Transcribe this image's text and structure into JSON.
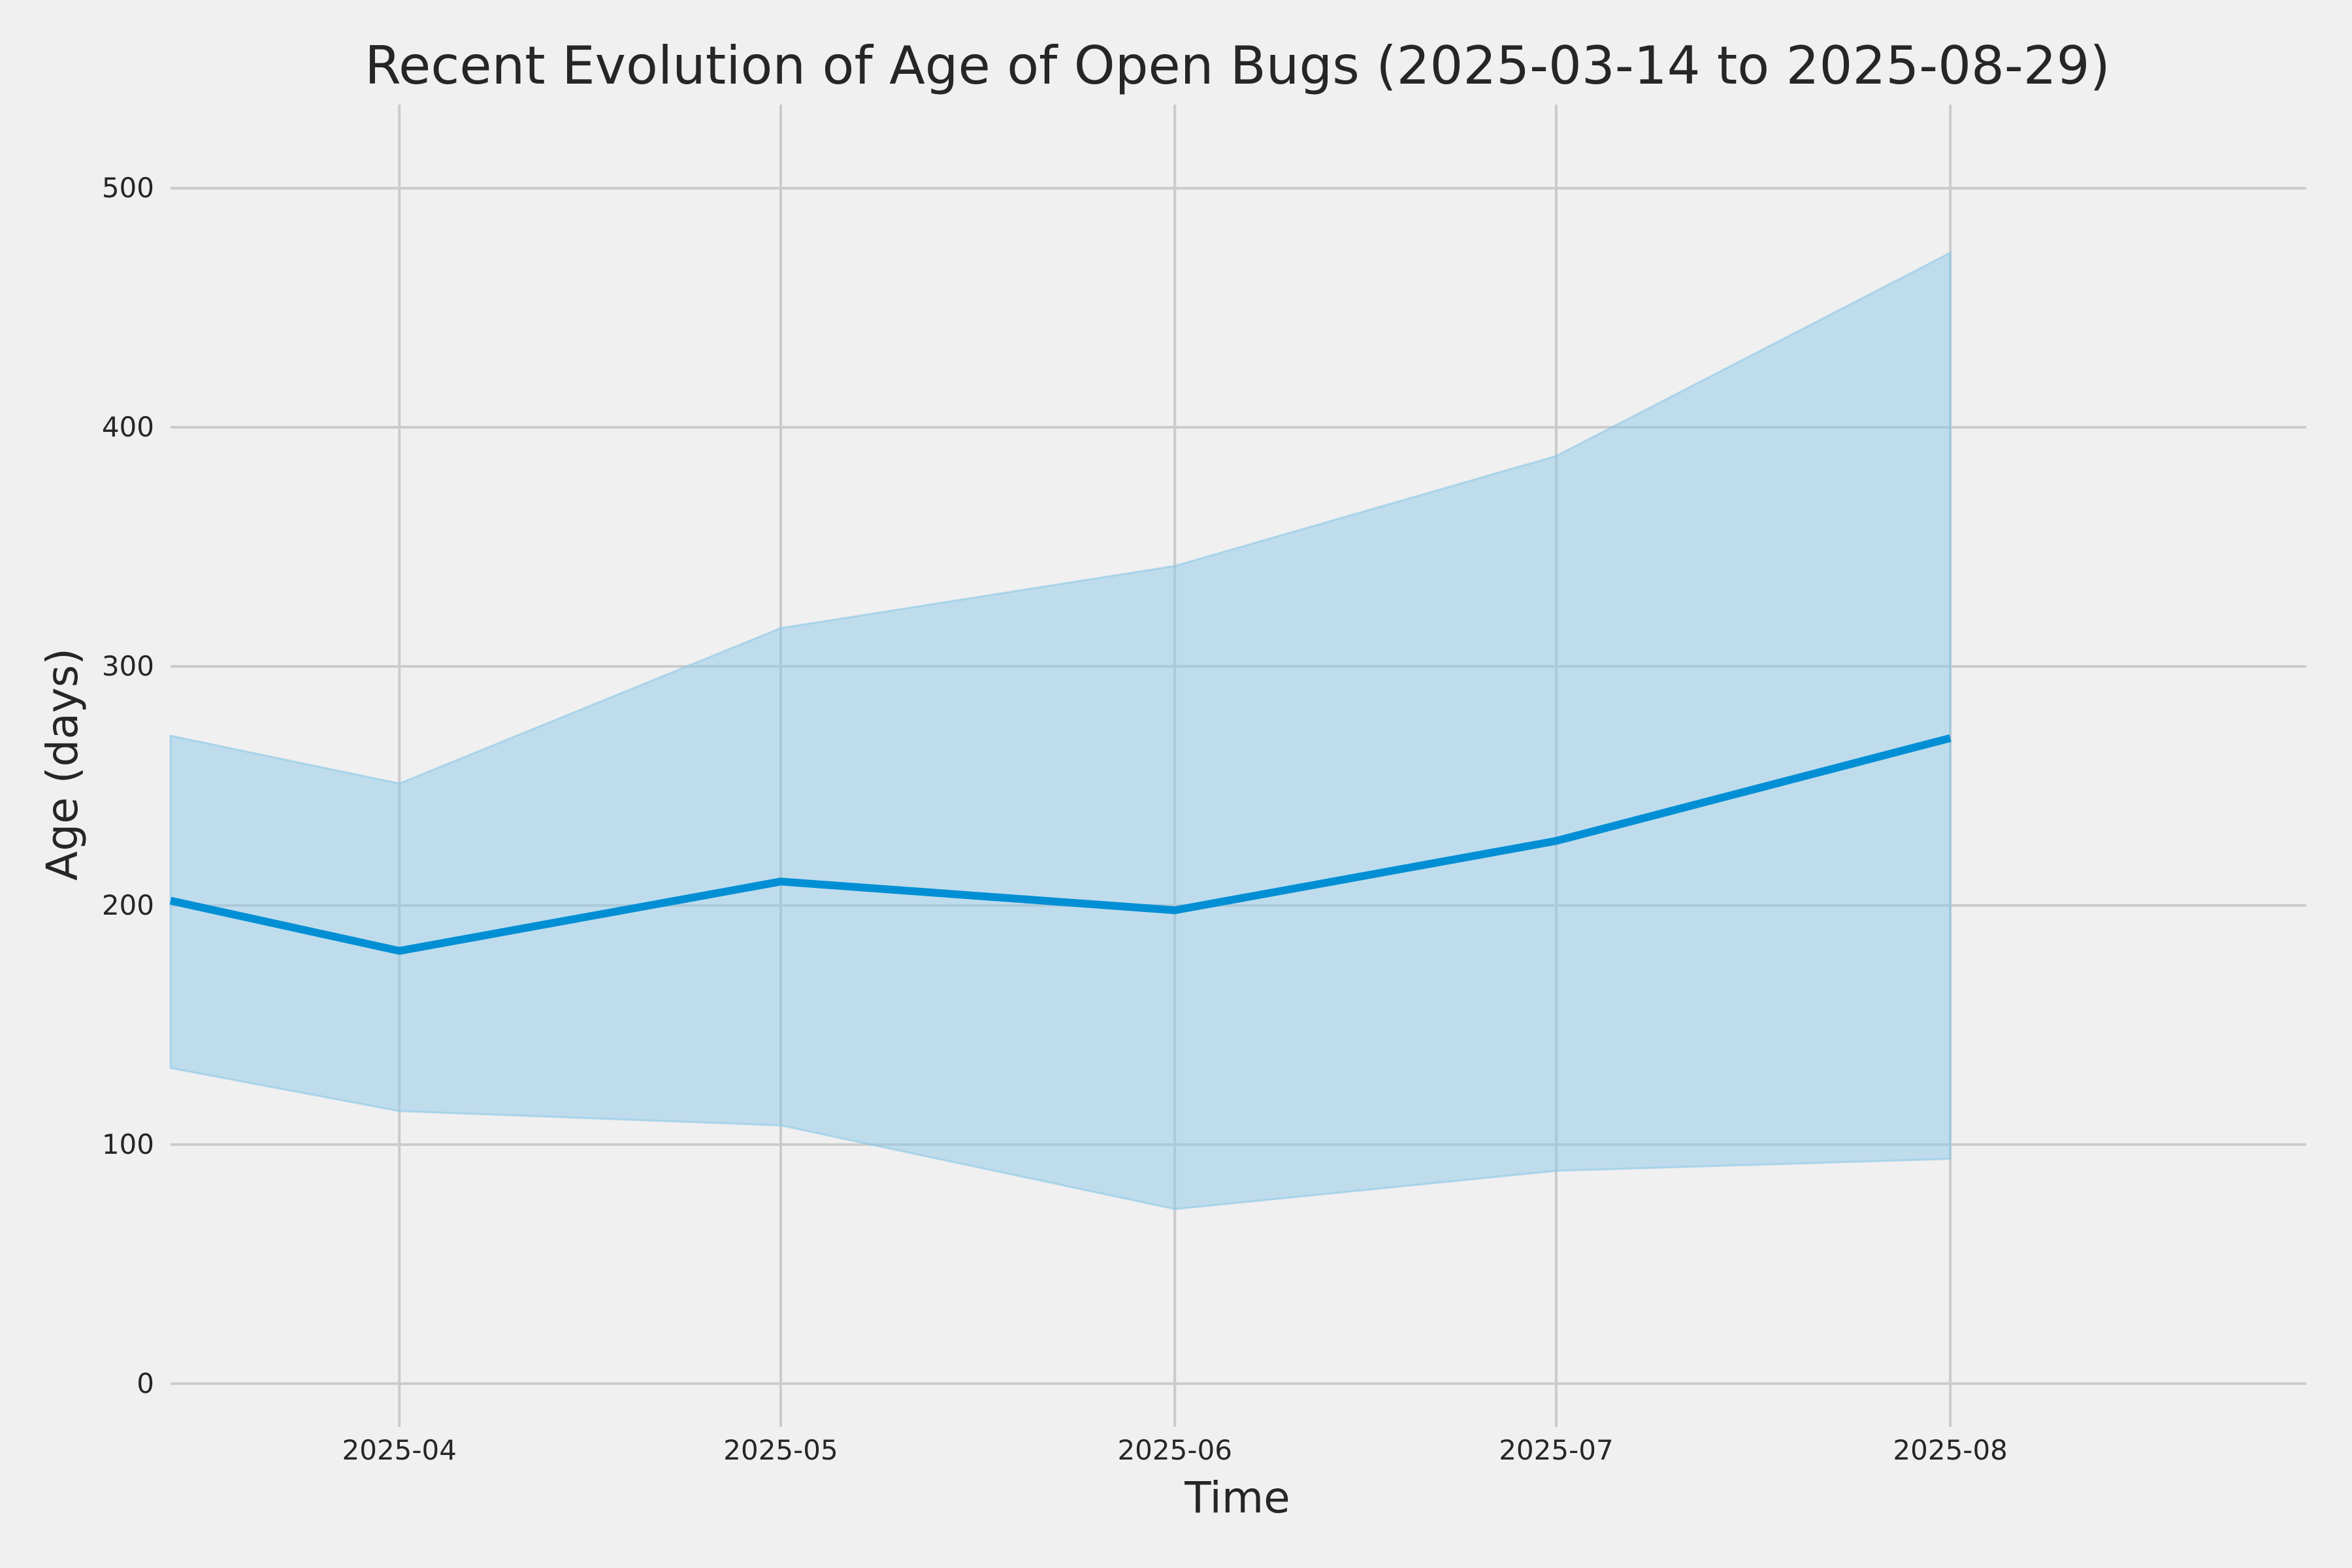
{
  "chart_data": {
    "type": "line",
    "title": "Recent Evolution of Age of Open Bugs (2025-03-14 to 2025-08-29)",
    "xlabel": "Time",
    "ylabel": "Age (days)",
    "x_tick_labels": [
      "2025-04",
      "2025-05",
      "2025-06",
      "2025-07",
      "2025-08"
    ],
    "y_tick_labels": [
      "0",
      "100",
      "200",
      "300",
      "400",
      "500"
    ],
    "y_ticks": [
      0,
      100,
      200,
      300,
      400,
      500
    ],
    "xlim": [
      "2025-03-14",
      "2025-08-29"
    ],
    "ylim": [
      -17,
      535
    ],
    "grid": true,
    "x": [
      "2025-03-14",
      "2025-04-01",
      "2025-05-01",
      "2025-06-01",
      "2025-07-01",
      "2025-08-01"
    ],
    "series": [
      {
        "values": [
          202,
          181,
          210,
          198,
          227,
          270
        ],
        "band_lower": [
          132,
          114,
          108,
          73,
          89,
          94
        ],
        "band_upper": [
          271,
          251,
          316,
          342,
          388,
          473
        ]
      }
    ],
    "colors": {
      "line": "#008fd5",
      "band": "#8ec8e8",
      "grid": "#cbcbcb",
      "background": "#f0f0f0"
    }
  }
}
